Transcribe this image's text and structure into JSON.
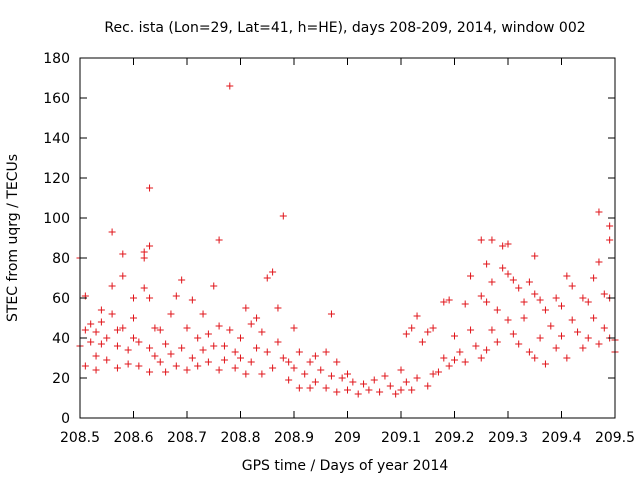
{
  "chart_data": {
    "type": "scatter",
    "title": "Rec. ista (Lon=29, Lat=41, h=HE), days 208-209, 2014, window 002",
    "xlabel": "GPS time / Days of year 2014",
    "ylabel": "STEC from uqrg / TECUs",
    "xlim": [
      208.5,
      209.5
    ],
    "ylim": [
      0,
      180
    ],
    "x_ticks": [
      208.5,
      208.6,
      208.7,
      208.8,
      208.9,
      209,
      209.1,
      209.2,
      209.3,
      209.4,
      209.5
    ],
    "x_tick_labels": [
      "208.5",
      "208.6",
      "208.7",
      "208.8",
      "208.9",
      "209",
      "209.1",
      "209.2",
      "209.3",
      "209.4",
      "209.5"
    ],
    "y_ticks": [
      0,
      20,
      40,
      60,
      80,
      100,
      120,
      140,
      160,
      180
    ],
    "y_tick_labels": [
      "0",
      "20",
      "40",
      "60",
      "80",
      "100",
      "120",
      "140",
      "160",
      "180"
    ],
    "marker": "+",
    "color": "#e0141a",
    "grid": false,
    "legend": "none",
    "series": [
      {
        "points": [
          [
            208.5,
            36
          ],
          [
            208.5,
            80
          ],
          [
            208.51,
            61
          ],
          [
            208.51,
            44
          ],
          [
            208.51,
            26
          ],
          [
            208.52,
            38
          ],
          [
            208.52,
            47
          ],
          [
            208.53,
            43
          ],
          [
            208.53,
            31
          ],
          [
            208.53,
            24
          ],
          [
            208.54,
            54
          ],
          [
            208.54,
            37
          ],
          [
            208.54,
            48
          ],
          [
            208.55,
            40
          ],
          [
            208.55,
            29
          ],
          [
            208.56,
            93
          ],
          [
            208.56,
            66
          ],
          [
            208.56,
            52
          ],
          [
            208.57,
            44
          ],
          [
            208.57,
            36
          ],
          [
            208.57,
            25
          ],
          [
            208.58,
            82
          ],
          [
            208.58,
            71
          ],
          [
            208.58,
            45
          ],
          [
            208.59,
            34
          ],
          [
            208.59,
            27
          ],
          [
            208.6,
            60
          ],
          [
            208.6,
            50
          ],
          [
            208.6,
            40
          ],
          [
            208.61,
            26
          ],
          [
            208.61,
            38
          ],
          [
            208.62,
            80
          ],
          [
            208.62,
            83
          ],
          [
            208.62,
            65
          ],
          [
            208.63,
            115
          ],
          [
            208.63,
            86
          ],
          [
            208.63,
            60
          ],
          [
            208.63,
            35
          ],
          [
            208.63,
            23
          ],
          [
            208.64,
            45
          ],
          [
            208.64,
            31
          ],
          [
            208.65,
            44
          ],
          [
            208.65,
            28
          ],
          [
            208.66,
            37
          ],
          [
            208.66,
            23
          ],
          [
            208.67,
            52
          ],
          [
            208.67,
            32
          ],
          [
            208.68,
            61
          ],
          [
            208.68,
            26
          ],
          [
            208.69,
            35
          ],
          [
            208.69,
            69
          ],
          [
            208.7,
            45
          ],
          [
            208.7,
            24
          ],
          [
            208.71,
            59
          ],
          [
            208.71,
            30
          ],
          [
            208.72,
            40
          ],
          [
            208.72,
            26
          ],
          [
            208.73,
            52
          ],
          [
            208.73,
            34
          ],
          [
            208.74,
            42
          ],
          [
            208.74,
            28
          ],
          [
            208.75,
            66
          ],
          [
            208.75,
            36
          ],
          [
            208.76,
            89
          ],
          [
            208.76,
            46
          ],
          [
            208.76,
            24
          ],
          [
            208.77,
            36
          ],
          [
            208.77,
            29
          ],
          [
            208.78,
            166
          ],
          [
            208.78,
            44
          ],
          [
            208.79,
            33
          ],
          [
            208.79,
            25
          ],
          [
            208.8,
            40
          ],
          [
            208.8,
            30
          ],
          [
            208.81,
            55
          ],
          [
            208.81,
            22
          ],
          [
            208.82,
            47
          ],
          [
            208.82,
            28
          ],
          [
            208.83,
            50
          ],
          [
            208.83,
            35
          ],
          [
            208.84,
            43
          ],
          [
            208.84,
            22
          ],
          [
            208.85,
            70
          ],
          [
            208.85,
            33
          ],
          [
            208.86,
            73
          ],
          [
            208.86,
            25
          ],
          [
            208.87,
            55
          ],
          [
            208.87,
            38
          ],
          [
            208.88,
            101
          ],
          [
            208.88,
            30
          ],
          [
            208.89,
            28
          ],
          [
            208.89,
            19
          ],
          [
            208.9,
            45
          ],
          [
            208.9,
            25
          ],
          [
            208.91,
            33
          ],
          [
            208.91,
            15
          ],
          [
            208.92,
            22
          ],
          [
            208.93,
            28
          ],
          [
            208.93,
            15
          ],
          [
            208.94,
            31
          ],
          [
            208.94,
            18
          ],
          [
            208.95,
            24
          ],
          [
            208.96,
            33
          ],
          [
            208.96,
            15
          ],
          [
            208.97,
            52
          ],
          [
            208.97,
            21
          ],
          [
            208.98,
            28
          ],
          [
            208.98,
            13
          ],
          [
            208.99,
            20
          ],
          [
            209.0,
            22
          ],
          [
            209.0,
            14
          ],
          [
            209.01,
            18
          ],
          [
            209.02,
            12
          ],
          [
            209.03,
            17
          ],
          [
            209.04,
            14
          ],
          [
            209.05,
            19
          ],
          [
            209.06,
            13
          ],
          [
            209.07,
            21
          ],
          [
            209.08,
            16
          ],
          [
            209.09,
            12
          ],
          [
            209.1,
            24
          ],
          [
            209.1,
            14
          ],
          [
            209.11,
            42
          ],
          [
            209.11,
            18
          ],
          [
            209.12,
            45
          ],
          [
            209.12,
            14
          ],
          [
            209.13,
            51
          ],
          [
            209.13,
            20
          ],
          [
            209.14,
            38
          ],
          [
            209.15,
            43
          ],
          [
            209.15,
            16
          ],
          [
            209.16,
            45
          ],
          [
            209.16,
            22
          ],
          [
            209.17,
            23
          ],
          [
            209.18,
            58
          ],
          [
            209.18,
            30
          ],
          [
            209.19,
            59
          ],
          [
            209.19,
            26
          ],
          [
            209.2,
            41
          ],
          [
            209.2,
            29
          ],
          [
            209.21,
            33
          ],
          [
            209.22,
            57
          ],
          [
            209.22,
            28
          ],
          [
            209.23,
            71
          ],
          [
            209.23,
            44
          ],
          [
            209.24,
            36
          ],
          [
            209.25,
            89
          ],
          [
            209.25,
            61
          ],
          [
            209.25,
            30
          ],
          [
            209.26,
            77
          ],
          [
            209.26,
            58
          ],
          [
            209.26,
            34
          ],
          [
            209.27,
            89
          ],
          [
            209.27,
            68
          ],
          [
            209.27,
            44
          ],
          [
            209.28,
            54
          ],
          [
            209.28,
            38
          ],
          [
            209.29,
            86
          ],
          [
            209.29,
            75
          ],
          [
            209.3,
            87
          ],
          [
            209.3,
            72
          ],
          [
            209.3,
            49
          ],
          [
            209.31,
            69
          ],
          [
            209.31,
            42
          ],
          [
            209.32,
            65
          ],
          [
            209.32,
            37
          ],
          [
            209.33,
            58
          ],
          [
            209.33,
            50
          ],
          [
            209.34,
            68
          ],
          [
            209.34,
            33
          ],
          [
            209.35,
            81
          ],
          [
            209.35,
            62
          ],
          [
            209.35,
            30
          ],
          [
            209.36,
            59
          ],
          [
            209.36,
            40
          ],
          [
            209.37,
            54
          ],
          [
            209.37,
            27
          ],
          [
            209.38,
            46
          ],
          [
            209.39,
            60
          ],
          [
            209.39,
            35
          ],
          [
            209.4,
            56
          ],
          [
            209.4,
            41
          ],
          [
            209.41,
            71
          ],
          [
            209.41,
            30
          ],
          [
            209.42,
            66
          ],
          [
            209.42,
            49
          ],
          [
            209.43,
            43
          ],
          [
            209.44,
            60
          ],
          [
            209.44,
            35
          ],
          [
            209.45,
            58
          ],
          [
            209.45,
            40
          ],
          [
            209.46,
            70
          ],
          [
            209.46,
            50
          ],
          [
            209.47,
            103
          ],
          [
            209.47,
            78
          ],
          [
            209.47,
            37
          ],
          [
            209.48,
            62
          ],
          [
            209.48,
            45
          ],
          [
            209.49,
            96
          ],
          [
            209.49,
            89
          ],
          [
            209.49,
            60
          ],
          [
            209.49,
            40
          ],
          [
            209.5,
            39
          ],
          [
            209.5,
            33
          ]
        ]
      }
    ]
  }
}
